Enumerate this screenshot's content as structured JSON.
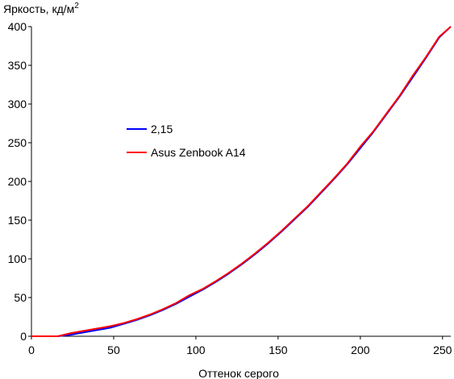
{
  "chart_data": {
    "type": "line",
    "title": "",
    "ylabel": "Яркость, кд/м",
    "ylabel_sup": "2",
    "xlabel": "Оттенок серого",
    "xlim": [
      0,
      255
    ],
    "ylim": [
      0,
      400
    ],
    "x_ticks": [
      0,
      50,
      100,
      150,
      200,
      250
    ],
    "y_ticks": [
      0,
      50,
      100,
      150,
      200,
      250,
      300,
      350,
      400
    ],
    "grid": false,
    "legend_position": "center-left",
    "series": [
      {
        "name": "2,15",
        "color": "#0000ff",
        "x": [
          0,
          8,
          16,
          24,
          32,
          40,
          48,
          56,
          64,
          72,
          80,
          88,
          96,
          104,
          112,
          120,
          128,
          136,
          144,
          152,
          160,
          168,
          176,
          184,
          192,
          200,
          208,
          216,
          224,
          232,
          240,
          248,
          255
        ],
        "y": [
          0,
          0,
          0,
          2,
          5,
          8,
          11,
          16,
          21,
          27,
          34,
          42,
          51,
          60,
          70,
          81,
          93,
          106,
          120,
          135,
          151,
          167,
          185,
          203,
          222,
          243,
          264,
          287,
          310,
          335,
          360,
          386,
          400
        ]
      },
      {
        "name": "Asus Zenbook A14",
        "color": "#ff0000",
        "x": [
          0,
          8,
          16,
          24,
          32,
          40,
          48,
          56,
          64,
          72,
          80,
          88,
          96,
          104,
          112,
          120,
          128,
          136,
          144,
          152,
          160,
          168,
          176,
          184,
          192,
          200,
          208,
          216,
          224,
          232,
          240,
          248,
          255
        ],
        "y": [
          0,
          0,
          0,
          4,
          7,
          10,
          13,
          17,
          22,
          28,
          35,
          43,
          53,
          61,
          71,
          82,
          94,
          107,
          121,
          136,
          152,
          168,
          186,
          204,
          223,
          245,
          265,
          288,
          311,
          337,
          361,
          387,
          400
        ]
      }
    ]
  }
}
